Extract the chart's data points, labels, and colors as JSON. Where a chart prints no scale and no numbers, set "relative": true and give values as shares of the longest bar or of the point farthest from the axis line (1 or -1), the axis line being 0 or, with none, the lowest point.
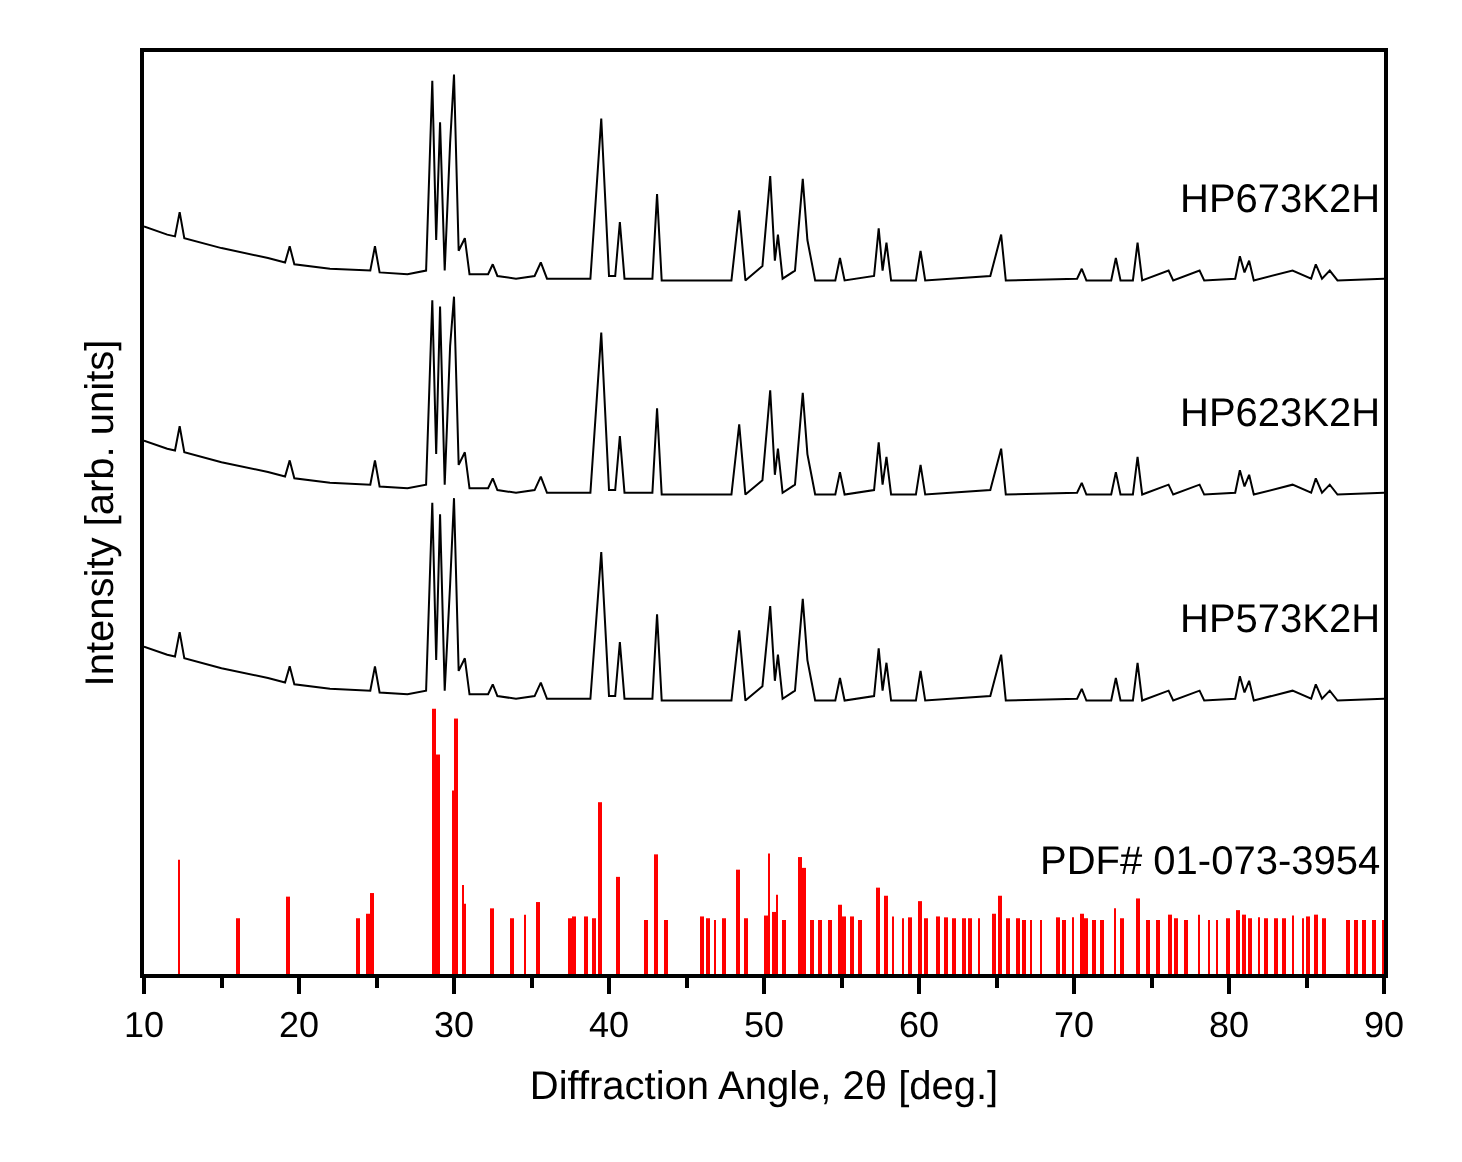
{
  "chart_data": {
    "type": "line",
    "relative": true,
    "xlabel": "Diffraction Angle, 2θ [deg.]",
    "ylabel": "Intensity [arb. units]",
    "xlim": [
      10,
      90
    ],
    "xticks": [
      10,
      {
        "value": 15,
        "label": null
      },
      20,
      {
        "value": 25,
        "label": null
      },
      30,
      {
        "value": 35,
        "label": null
      },
      40,
      {
        "value": 45,
        "label": null
      },
      50,
      {
        "value": 55,
        "label": null
      },
      60,
      {
        "value": 65,
        "label": null
      },
      70,
      {
        "value": 75,
        "label": null
      },
      80,
      {
        "value": 85,
        "label": null
      },
      90
    ],
    "tick_labels": "x",
    "grid": false,
    "legend": false,
    "marker": "none",
    "line_style": "solid",
    "x": [
      10,
      11.5,
      12,
      12.3,
      12.6,
      15,
      18,
      19.1,
      19.4,
      19.7,
      22,
      24.6,
      24.9,
      25.2,
      27,
      28.2,
      28.6,
      28.85,
      29.1,
      29.4,
      29.75,
      30,
      30.3,
      30.7,
      31,
      32.2,
      32.5,
      32.8,
      34,
      35.2,
      35.6,
      36,
      38.8,
      39.5,
      40,
      40.4,
      40.7,
      41,
      42.8,
      43.1,
      43.4,
      47.9,
      48.4,
      48.8,
      49.9,
      50.4,
      50.7,
      50.9,
      51.2,
      52,
      52.5,
      52.8,
      53,
      53.3,
      54.6,
      54.9,
      55.2,
      57.1,
      57.4,
      57.65,
      57.9,
      58.2,
      59.8,
      60.1,
      60.4,
      64.6,
      64.8,
      65.3,
      65.6,
      70.2,
      70.5,
      70.8,
      72.4,
      72.7,
      73,
      73.8,
      74.1,
      74.4,
      76.1,
      76.4,
      78.1,
      78.4,
      80.4,
      80.7,
      81,
      81.3,
      81.6,
      84.1,
      85.3,
      85.6,
      86,
      86.5,
      87,
      90
    ],
    "series": [
      {
        "name": "HP673K2H",
        "color": "#000000",
        "values": [
          0.831,
          0.822,
          0.82,
          0.847,
          0.818,
          0.807,
          0.796,
          0.791,
          0.809,
          0.789,
          0.784,
          0.782,
          0.809,
          0.78,
          0.778,
          0.782,
          0.993,
          0.816,
          0.947,
          0.782,
          0.924,
          1.0,
          0.804,
          0.818,
          0.778,
          0.778,
          0.789,
          0.776,
          0.773,
          0.776,
          0.791,
          0.773,
          0.773,
          0.951,
          0.776,
          0.776,
          0.836,
          0.773,
          0.773,
          0.867,
          0.771,
          0.771,
          0.849,
          0.771,
          0.787,
          0.887,
          0.793,
          0.822,
          0.773,
          0.782,
          0.884,
          0.816,
          0.798,
          0.771,
          0.771,
          0.796,
          0.771,
          0.776,
          0.829,
          0.782,
          0.813,
          0.771,
          0.771,
          0.804,
          0.771,
          0.776,
          0.789,
          0.822,
          0.771,
          0.773,
          0.784,
          0.771,
          0.771,
          0.796,
          0.771,
          0.771,
          0.813,
          0.771,
          0.782,
          0.771,
          0.782,
          0.771,
          0.773,
          0.798,
          0.78,
          0.793,
          0.771,
          0.782,
          0.773,
          0.789,
          0.773,
          0.782,
          0.771,
          0.773
        ]
      },
      {
        "name": "HP623K2H",
        "color": "#000000",
        "values": [
          0.593,
          0.584,
          0.582,
          0.609,
          0.58,
          0.569,
          0.558,
          0.553,
          0.571,
          0.551,
          0.546,
          0.544,
          0.571,
          0.542,
          0.54,
          0.544,
          0.749,
          0.578,
          0.742,
          0.544,
          0.698,
          0.753,
          0.566,
          0.58,
          0.54,
          0.54,
          0.551,
          0.538,
          0.535,
          0.538,
          0.553,
          0.535,
          0.535,
          0.713,
          0.538,
          0.538,
          0.598,
          0.535,
          0.535,
          0.629,
          0.533,
          0.533,
          0.611,
          0.533,
          0.549,
          0.649,
          0.555,
          0.584,
          0.535,
          0.544,
          0.646,
          0.578,
          0.56,
          0.533,
          0.533,
          0.558,
          0.533,
          0.538,
          0.591,
          0.544,
          0.575,
          0.533,
          0.533,
          0.566,
          0.533,
          0.538,
          0.551,
          0.584,
          0.533,
          0.535,
          0.546,
          0.533,
          0.533,
          0.558,
          0.533,
          0.533,
          0.575,
          0.533,
          0.544,
          0.533,
          0.544,
          0.533,
          0.535,
          0.56,
          0.542,
          0.555,
          0.533,
          0.544,
          0.535,
          0.551,
          0.535,
          0.544,
          0.533,
          0.535
        ]
      },
      {
        "name": "HP573K2H",
        "color": "#000000",
        "values": [
          0.364,
          0.355,
          0.353,
          0.38,
          0.351,
          0.34,
          0.329,
          0.324,
          0.342,
          0.322,
          0.317,
          0.315,
          0.342,
          0.313,
          0.311,
          0.315,
          0.524,
          0.349,
          0.511,
          0.315,
          0.433,
          0.529,
          0.337,
          0.351,
          0.311,
          0.311,
          0.322,
          0.309,
          0.306,
          0.309,
          0.324,
          0.306,
          0.306,
          0.469,
          0.309,
          0.309,
          0.369,
          0.306,
          0.306,
          0.4,
          0.304,
          0.304,
          0.382,
          0.304,
          0.32,
          0.409,
          0.326,
          0.355,
          0.306,
          0.315,
          0.417,
          0.349,
          0.331,
          0.304,
          0.304,
          0.329,
          0.304,
          0.309,
          0.362,
          0.315,
          0.346,
          0.304,
          0.304,
          0.337,
          0.304,
          0.309,
          0.322,
          0.355,
          0.304,
          0.306,
          0.317,
          0.304,
          0.304,
          0.329,
          0.304,
          0.304,
          0.346,
          0.304,
          0.315,
          0.304,
          0.315,
          0.304,
          0.306,
          0.331,
          0.313,
          0.326,
          0.304,
          0.315,
          0.306,
          0.322,
          0.306,
          0.315,
          0.304,
          0.306
        ]
      },
      {
        "name": "PDF# 01-073-3954",
        "color": "#ff0000",
        "type": "bar",
        "x": [
          12.25,
          16.06,
          19.31,
          23.78,
          24.43,
          24.73,
          28.68,
          28.98,
          29.94,
          30.16,
          30.58,
          30.71,
          32.45,
          33.75,
          34.58,
          35.4,
          37.52,
          37.74,
          38.48,
          39.08,
          39.43,
          40.56,
          42.38,
          43.03,
          43.72,
          45.97,
          46.41,
          46.84,
          47.4,
          48.36,
          48.79,
          50.09,
          50.31,
          50.65,
          50.83,
          51.3,
          52.34,
          52.56,
          53.12,
          53.64,
          54.21,
          54.86,
          55.2,
          55.72,
          56.24,
          57.33,
          57.89,
          58.32,
          58.97,
          59.41,
          60.06,
          60.49,
          61.27,
          61.79,
          62.22,
          62.87,
          63.31,
          63.87,
          64.82,
          65.27,
          65.7,
          66.35,
          66.78,
          67.22,
          67.87,
          68.95,
          69.38,
          69.95,
          70.47,
          70.81,
          71.33,
          71.77,
          72.63,
          73.07,
          74.15,
          74.8,
          75.45,
          76.19,
          76.62,
          77.18,
          78.05,
          78.7,
          79.22,
          79.91,
          80.56,
          80.95,
          81.39,
          81.95,
          82.38,
          83.03,
          83.55,
          84.12,
          84.77,
          85.11,
          85.63,
          86.15,
          87.71,
          88.23,
          88.75,
          89.32,
          89.97
        ],
        "values": [
          0.127,
          0.062,
          0.086,
          0.062,
          0.067,
          0.09,
          0.295,
          0.244,
          0.204,
          0.284,
          0.099,
          0.078,
          0.073,
          0.062,
          0.066,
          0.08,
          0.062,
          0.064,
          0.064,
          0.062,
          0.191,
          0.108,
          0.06,
          0.133,
          0.06,
          0.064,
          0.062,
          0.06,
          0.062,
          0.116,
          0.062,
          0.065,
          0.134,
          0.069,
          0.088,
          0.06,
          0.13,
          0.118,
          0.06,
          0.06,
          0.06,
          0.077,
          0.064,
          0.064,
          0.06,
          0.096,
          0.087,
          0.064,
          0.062,
          0.063,
          0.081,
          0.062,
          0.064,
          0.063,
          0.062,
          0.062,
          0.062,
          0.062,
          0.067,
          0.087,
          0.062,
          0.062,
          0.06,
          0.06,
          0.06,
          0.063,
          0.06,
          0.063,
          0.067,
          0.062,
          0.06,
          0.06,
          0.073,
          0.062,
          0.084,
          0.06,
          0.06,
          0.066,
          0.062,
          0.06,
          0.066,
          0.06,
          0.06,
          0.062,
          0.071,
          0.066,
          0.062,
          0.063,
          0.062,
          0.062,
          0.062,
          0.065,
          0.062,
          0.064,
          0.066,
          0.062,
          0.06,
          0.06,
          0.06,
          0.06,
          0.06
        ]
      }
    ]
  }
}
